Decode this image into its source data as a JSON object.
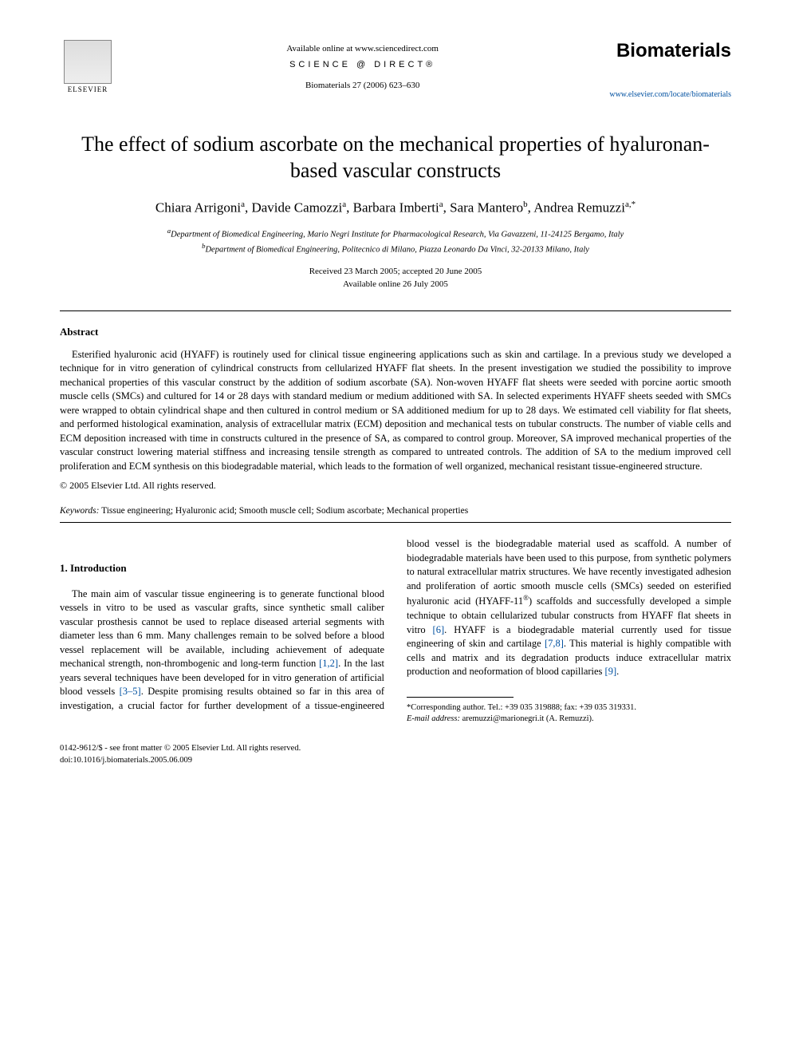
{
  "header": {
    "publisher_name": "ELSEVIER",
    "available_text": "Available online at www.sciencedirect.com",
    "science_direct": "SCIENCE @ DIRECT®",
    "citation": "Biomaterials 27 (2006) 623–630",
    "journal_name": "Biomaterials",
    "journal_url": "www.elsevier.com/locate/biomaterials"
  },
  "title": "The effect of sodium ascorbate on the mechanical properties of hyaluronan-based vascular constructs",
  "authors_html": "Chiara Arrigoni<sup>a</sup>, Davide Camozzi<sup>a</sup>, Barbara Imberti<sup>a</sup>, Sara Mantero<sup>b</sup>, Andrea Remuzzi<sup>a,*</sup>",
  "affiliations": {
    "a": "Department of Biomedical Engineering, Mario Negri Institute for Pharmacological Research, Via Gavazzeni, 11-24125 Bergamo, Italy",
    "b": "Department of Biomedical Engineering, Politecnico di Milano, Piazza Leonardo Da Vinci, 32-20133 Milano, Italy"
  },
  "dates": {
    "received": "Received 23 March 2005; accepted 20 June 2005",
    "online": "Available online 26 July 2005"
  },
  "abstract": {
    "heading": "Abstract",
    "text": "Esterified hyaluronic acid (HYAFF) is routinely used for clinical tissue engineering applications such as skin and cartilage. In a previous study we developed a technique for in vitro generation of cylindrical constructs from cellularized HYAFF flat sheets. In the present investigation we studied the possibility to improve mechanical properties of this vascular construct by the addition of sodium ascorbate (SA). Non-woven HYAFF flat sheets were seeded with porcine aortic smooth muscle cells (SMCs) and cultured for 14 or 28 days with standard medium or medium additioned with SA. In selected experiments HYAFF sheets seeded with SMCs were wrapped to obtain cylindrical shape and then cultured in control medium or SA additioned medium for up to 28 days. We estimated cell viability for flat sheets, and performed histological examination, analysis of extracellular matrix (ECM) deposition and mechanical tests on tubular constructs. The number of viable cells and ECM deposition increased with time in constructs cultured in the presence of SA, as compared to control group. Moreover, SA improved mechanical properties of the vascular construct lowering material stiffness and increasing tensile strength as compared to untreated controls. The addition of SA to the medium improved cell proliferation and ECM synthesis on this biodegradable material, which leads to the formation of well organized, mechanical resistant tissue-engineered structure.",
    "copyright": "© 2005 Elsevier Ltd. All rights reserved."
  },
  "keywords": {
    "label": "Keywords:",
    "text": "Tissue engineering; Hyaluronic acid; Smooth muscle cell; Sodium ascorbate; Mechanical properties"
  },
  "introduction": {
    "heading": "1. Introduction",
    "col1_part1": "The main aim of vascular tissue engineering is to generate functional blood vessels in vitro to be used as vascular grafts, since synthetic small caliber vascular prosthesis cannot be used to replace diseased arterial segments with diameter less than 6 mm. Many challenges remain to be solved before a blood vessel replacement will be available, including achievement of adequate mechanical strength, non-thrombogenic and long-term function ",
    "ref1": "[1,2]",
    "col1_part2": ". In the last years several techniques have been developed for in vitro generation of artificial blood vessels ",
    "ref2": "[3–5]",
    "col1_part3": ". Despite promising results",
    "col2_part1": "obtained so far in this area of investigation, a crucial factor for further development of a tissue-engineered blood vessel is the biodegradable material used as scaffold. A number of biodegradable materials have been used to this purpose, from synthetic polymers to natural extracellular matrix structures. We have recently investigated adhesion and proliferation of aortic smooth muscle cells (SMCs) seeded on esterified hyaluronic acid (HYAFF-11",
    "reg": "®",
    "col2_part2": ") scaffolds and successfully developed a simple technique to obtain cellularized tubular constructs from HYAFF flat sheets in vitro ",
    "ref3": "[6]",
    "col2_part3": ". HYAFF is a biodegradable material currently used for tissue engineering of skin and cartilage ",
    "ref4": "[7,8]",
    "col2_part4": ". This material is highly compatible with cells and matrix and its degradation products induce extracellular matrix production and neoformation of blood capillaries ",
    "ref5": "[9]",
    "col2_part5": "."
  },
  "footnote": {
    "corresponding": "*Corresponding author. Tel.: +39 035 319888; fax: +39 035 319331.",
    "email_label": "E-mail address:",
    "email": "aremuzzi@marionegri.it (A. Remuzzi)."
  },
  "footer": {
    "issn": "0142-9612/$ - see front matter © 2005 Elsevier Ltd. All rights reserved.",
    "doi": "doi:10.1016/j.biomaterials.2005.06.009"
  },
  "colors": {
    "link": "#0050a0",
    "text": "#000000",
    "background": "#ffffff"
  }
}
